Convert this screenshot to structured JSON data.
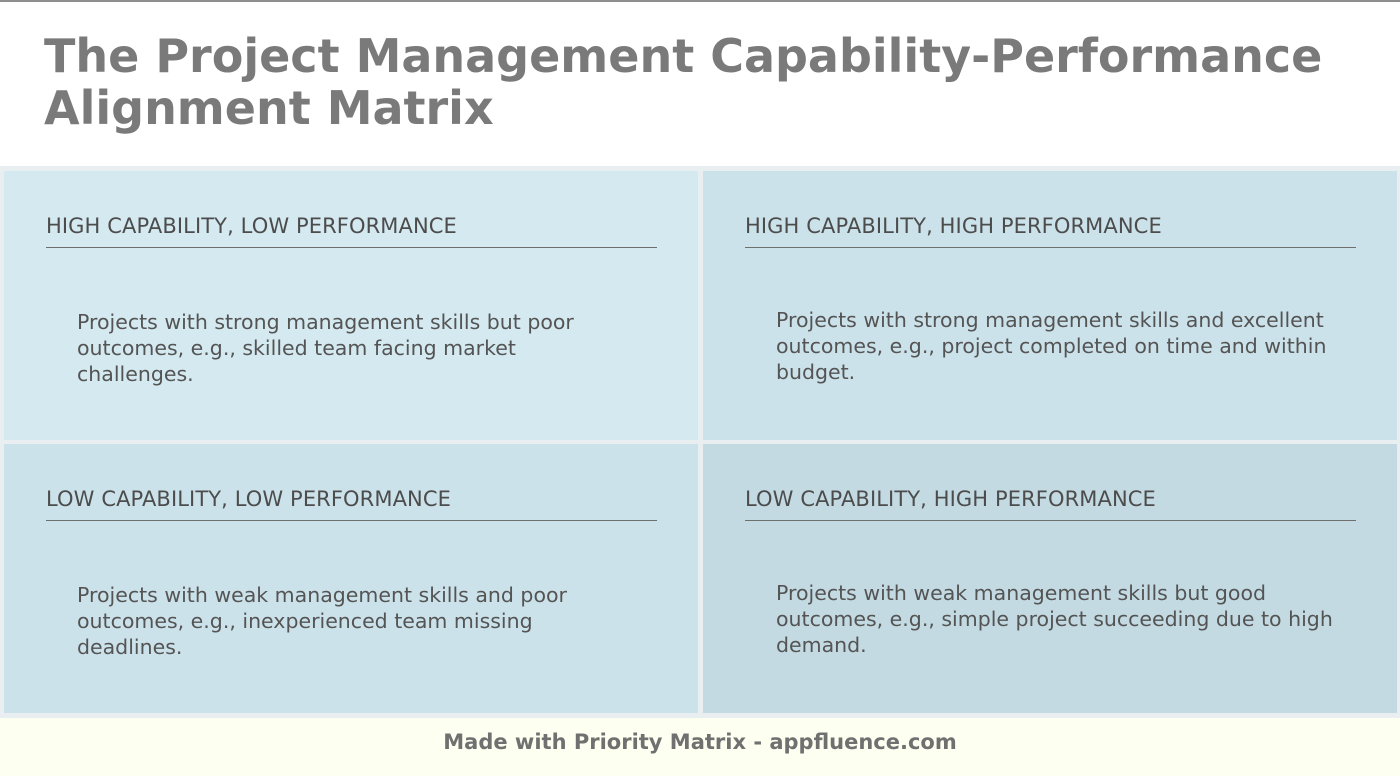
{
  "title": "The Project Management Capability-Performance Alignment Matrix",
  "quadrants": {
    "top_left": {
      "heading": "HIGH CAPABILITY, LOW PERFORMANCE",
      "body": "Projects with strong management skills but poor outcomes, e.g., skilled team facing market challenges."
    },
    "top_right": {
      "heading": "HIGH CAPABILITY, HIGH PERFORMANCE",
      "body": "Projects with strong management skills and excellent outcomes, e.g., project completed on time and within budget."
    },
    "bottom_left": {
      "heading": "LOW CAPABILITY, LOW PERFORMANCE",
      "body": "Projects with weak management skills and poor outcomes, e.g., inexperienced team missing deadlines."
    },
    "bottom_right": {
      "heading": "LOW CAPABILITY, HIGH PERFORMANCE",
      "body": "Projects with weak management skills but good outcomes, e.g., simple project succeeding due to high demand."
    }
  },
  "footer": {
    "text": "Made with Priority Matrix - appfluence.com"
  },
  "colors": {
    "top_left_fill": "#d4e9f0",
    "top_right_fill": "#cce2ea",
    "bottom_left_fill": "#cce2ea",
    "bottom_right_fill": "#c3dae2",
    "footer_fill": "#fdfff0",
    "title_text": "#7a7a7a"
  }
}
